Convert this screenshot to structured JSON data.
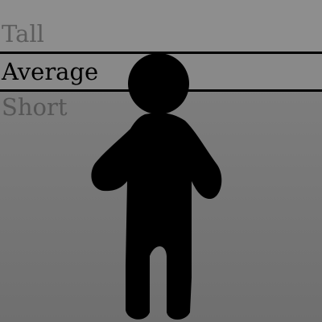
{
  "height_selector": {
    "options": [
      {
        "label": "Tall",
        "selected": false
      },
      {
        "label": "Average",
        "selected": true
      },
      {
        "label": "Short",
        "selected": false
      }
    ]
  },
  "colors": {
    "background": "#777777",
    "figure": "#000000",
    "selected_text": "#000000",
    "unselected_text": "#5c5c5c"
  },
  "figure": {
    "icon": "person-silhouette-icon"
  }
}
